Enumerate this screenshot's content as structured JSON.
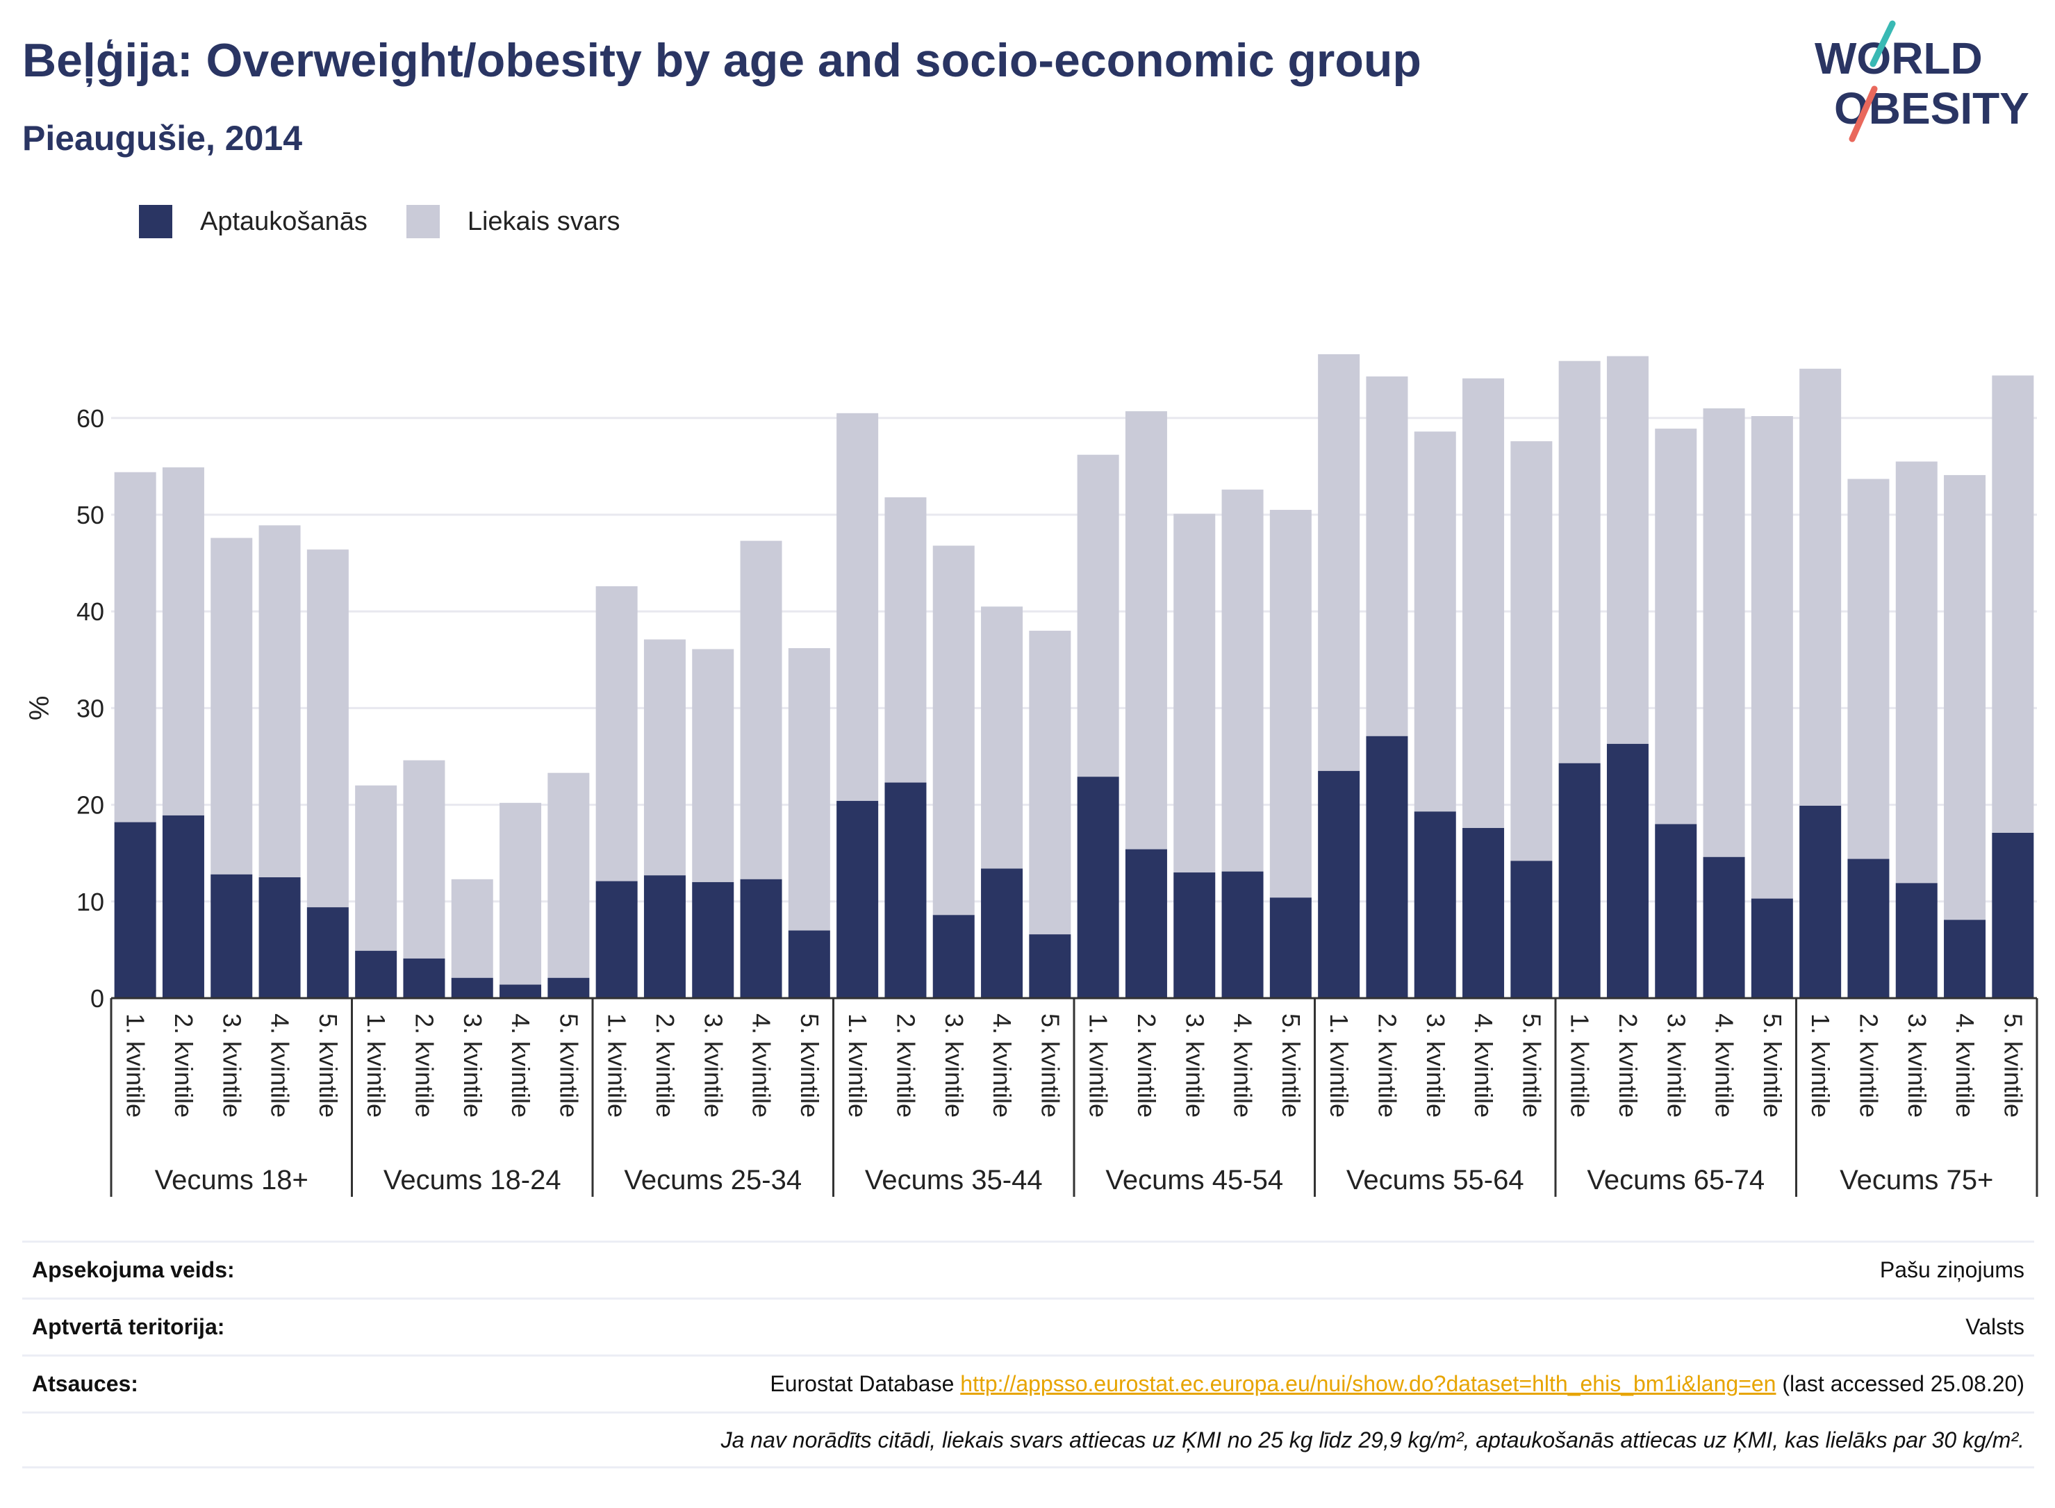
{
  "title": "Beļģija: Overweight/obesity by age and socio-economic group",
  "subtitle": "Pieaugušie, 2014",
  "logo": {
    "line1": "WORLD",
    "line2": "OBESITY"
  },
  "colors": {
    "obesity": "#2a3563",
    "overweight": "#cacbd8",
    "title": "#2a3563",
    "link": "#e7a400",
    "logo_teal": "#39b9b4",
    "logo_red": "#e9685c"
  },
  "legend": [
    {
      "label": "Aptaukošanās",
      "color": "#2a3563"
    },
    {
      "label": "Liekais svars",
      "color": "#cacbd8"
    }
  ],
  "chart_data": {
    "type": "bar",
    "stacked": true,
    "ylabel": "%",
    "ylim": [
      0,
      70
    ],
    "yticks": [
      0,
      10,
      20,
      30,
      40,
      50,
      60
    ],
    "grid": true,
    "legend_position": "top-left",
    "categories": [
      "1. kvintile",
      "2. kvintile",
      "3. kvintile",
      "4. kvintile",
      "5. kvintile"
    ],
    "groups": [
      "Vecums 18+",
      "Vecums 18-24",
      "Vecums 25-34",
      "Vecums 35-44",
      "Vecums 45-54",
      "Vecums 55-64",
      "Vecums 65-74",
      "Vecums 75+"
    ],
    "series": [
      {
        "name": "Aptaukošanās",
        "values": [
          [
            18.2,
            18.9,
            12.8,
            12.5,
            9.4
          ],
          [
            4.9,
            4.1,
            2.1,
            1.4,
            2.1
          ],
          [
            12.1,
            12.7,
            12.0,
            12.3,
            7.0
          ],
          [
            20.4,
            22.3,
            8.6,
            13.4,
            6.6
          ],
          [
            22.9,
            15.4,
            13.0,
            13.1,
            10.4
          ],
          [
            23.5,
            27.1,
            19.3,
            17.6,
            14.2
          ],
          [
            24.3,
            26.3,
            18.0,
            14.6,
            10.3
          ],
          [
            19.9,
            14.4,
            11.9,
            8.1,
            17.1
          ]
        ]
      },
      {
        "name": "Liekais svars",
        "values": [
          [
            36.2,
            36.0,
            34.8,
            36.4,
            37.0
          ],
          [
            17.1,
            20.5,
            10.2,
            18.8,
            21.2
          ],
          [
            30.5,
            24.4,
            24.1,
            35.0,
            29.2
          ],
          [
            40.1,
            29.5,
            38.2,
            27.1,
            31.4
          ],
          [
            33.3,
            45.3,
            37.1,
            39.5,
            40.1
          ],
          [
            43.1,
            37.2,
            39.3,
            46.5,
            43.4
          ],
          [
            41.6,
            40.1,
            40.9,
            46.4,
            49.9
          ],
          [
            45.2,
            39.3,
            43.6,
            46.0,
            47.3
          ]
        ]
      }
    ]
  },
  "meta": {
    "survey_label": "Apsekojuma veids:",
    "survey_value": "Pašu ziņojums",
    "coverage_label": "Aptvertā teritorija:",
    "coverage_value": "Valsts",
    "refs_label": "Atsauces:",
    "refs_prefix": "Eurostat Database",
    "refs_link": "http://appsso.eurostat.ec.europa.eu/nui/show.do?dataset=hlth_ehis_bm1i&lang=en",
    "refs_suffix": "(last accessed 25.08.20)",
    "note": "Ja nav norādīts citādi, liekais svars attiecas uz ĶMI no 25 kg līdz 29,9 kg/m², aptaukošanās attiecas uz ĶMI, kas lielāks par 30 kg/m²."
  }
}
